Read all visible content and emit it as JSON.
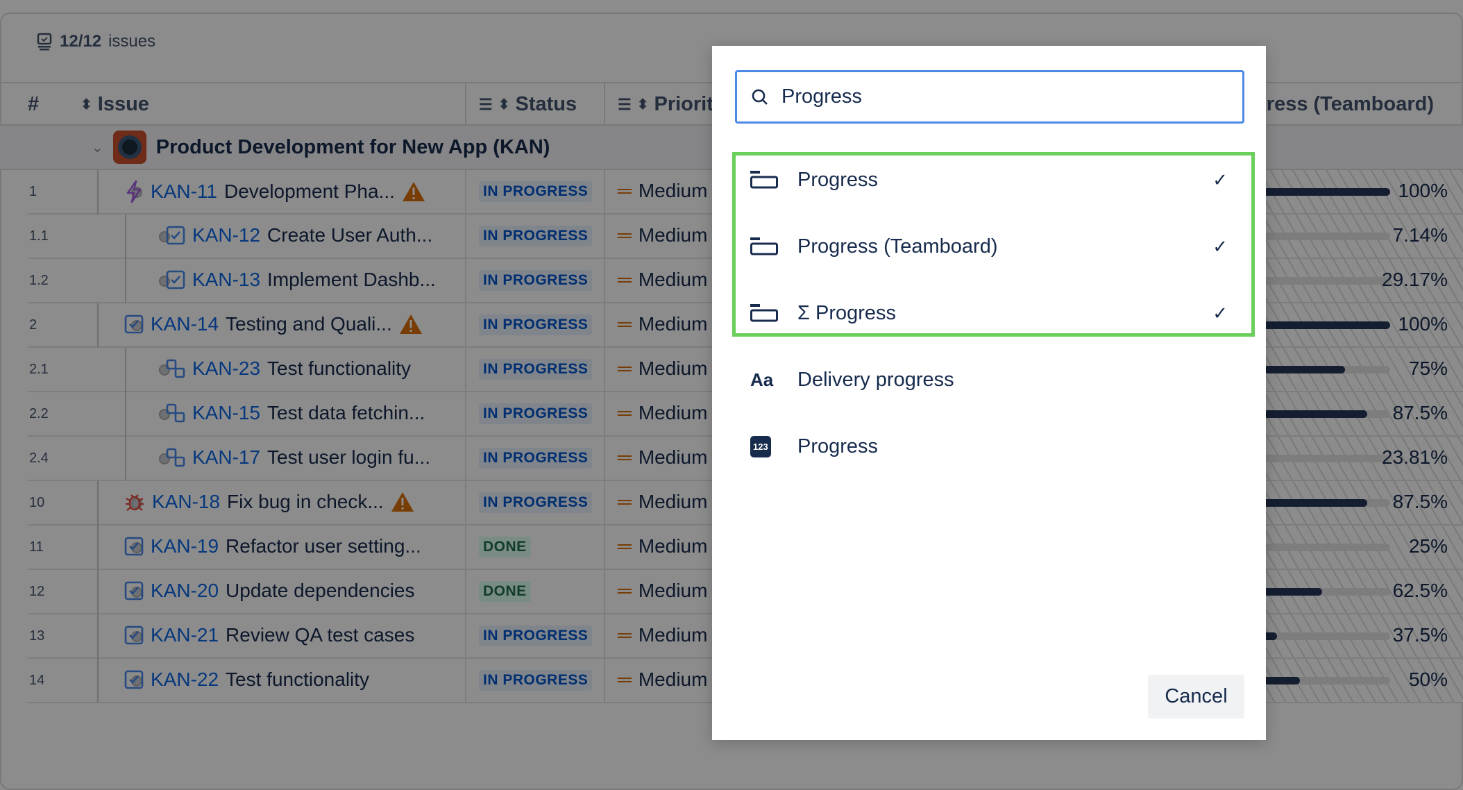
{
  "summary": {
    "count": "12/12",
    "label": "issues"
  },
  "columns": {
    "num": "#",
    "issue": "Issue",
    "status": "Status",
    "priority": "Priority",
    "progress": "Progress (Teamboard)"
  },
  "group": {
    "title": "Product Development for New App  (KAN)"
  },
  "rows": [
    {
      "num": "1",
      "level": 0,
      "type": "epic",
      "key": "KAN-11",
      "summary": "Development Pha...",
      "warning": true,
      "status": "IN PROGRESS",
      "priority": "Medium",
      "progress": "100%",
      "value": 100
    },
    {
      "num": "1.1",
      "level": 1,
      "type": "task",
      "key": "KAN-12",
      "summary": "Create User Auth...",
      "warning": false,
      "status": "IN PROGRESS",
      "priority": "Medium",
      "progress": "7.14%",
      "value": 7.14
    },
    {
      "num": "1.2",
      "level": 1,
      "type": "task",
      "key": "KAN-13",
      "summary": "Implement Dashb...",
      "warning": false,
      "status": "IN PROGRESS",
      "priority": "Medium",
      "progress": "29.17%",
      "value": 29.17
    },
    {
      "num": "2",
      "level": 0,
      "type": "task",
      "key": "KAN-14",
      "summary": "Testing and Quali...",
      "warning": true,
      "status": "IN PROGRESS",
      "priority": "Medium",
      "progress": "100%",
      "value": 100
    },
    {
      "num": "2.1",
      "level": 1,
      "type": "subtask",
      "key": "KAN-23",
      "summary": "Test functionality",
      "warning": false,
      "status": "IN PROGRESS",
      "priority": "Medium",
      "progress": "75%",
      "value": 75
    },
    {
      "num": "2.2",
      "level": 1,
      "type": "subtask",
      "key": "KAN-15",
      "summary": "Test data fetchin...",
      "warning": false,
      "status": "IN PROGRESS",
      "priority": "Medium",
      "progress": "87.5%",
      "value": 87.5
    },
    {
      "num": "2.4",
      "level": 1,
      "type": "subtask",
      "key": "KAN-17",
      "summary": "Test user login fu...",
      "warning": false,
      "status": "IN PROGRESS",
      "priority": "Medium",
      "progress": "23.81%",
      "value": 23.81
    },
    {
      "num": "10",
      "level": 0,
      "type": "bug",
      "key": "KAN-18",
      "summary": "Fix bug in check...",
      "warning": true,
      "status": "IN PROGRESS",
      "priority": "Medium",
      "progress": "87.5%",
      "value": 87.5
    },
    {
      "num": "11",
      "level": 0,
      "type": "task",
      "key": "KAN-19",
      "summary": "Refactor user setting...",
      "warning": false,
      "status": "DONE",
      "priority": "Medium",
      "progress": "25%",
      "value": 25
    },
    {
      "num": "12",
      "level": 0,
      "type": "task",
      "key": "KAN-20",
      "summary": "Update dependencies",
      "warning": false,
      "status": "DONE",
      "priority": "Medium",
      "progress": "62.5%",
      "value": 62.5
    },
    {
      "num": "13",
      "level": 0,
      "type": "task",
      "key": "KAN-21",
      "summary": "Review QA test cases",
      "warning": false,
      "status": "IN PROGRESS",
      "priority": "Medium",
      "progress": "37.5%",
      "value": 37.5
    },
    {
      "num": "14",
      "level": 0,
      "type": "task",
      "key": "KAN-22",
      "summary": "Test functionality",
      "warning": false,
      "status": "IN PROGRESS",
      "priority": "Medium",
      "progress": "50%",
      "value": 50
    }
  ],
  "modal": {
    "search_value": "Progress",
    "items": [
      {
        "icon": "progress-bar-icon",
        "label": "Progress",
        "selected": true
      },
      {
        "icon": "progress-bar-icon",
        "label": "Progress (Teamboard)",
        "selected": true
      },
      {
        "icon": "progress-bar-icon",
        "label": "Σ Progress",
        "selected": true
      },
      {
        "icon": "text-field-icon",
        "label": "Delivery progress",
        "selected": false
      },
      {
        "icon": "number-field-icon",
        "label": "Progress",
        "selected": false
      }
    ],
    "check": "✓",
    "text_icon": "Aa",
    "number_icon": "123",
    "cancel": "Cancel"
  },
  "colors": {
    "accent": "#0c66e4",
    "highlight": "#6bcf5c",
    "focus": "#4c8ae5"
  }
}
